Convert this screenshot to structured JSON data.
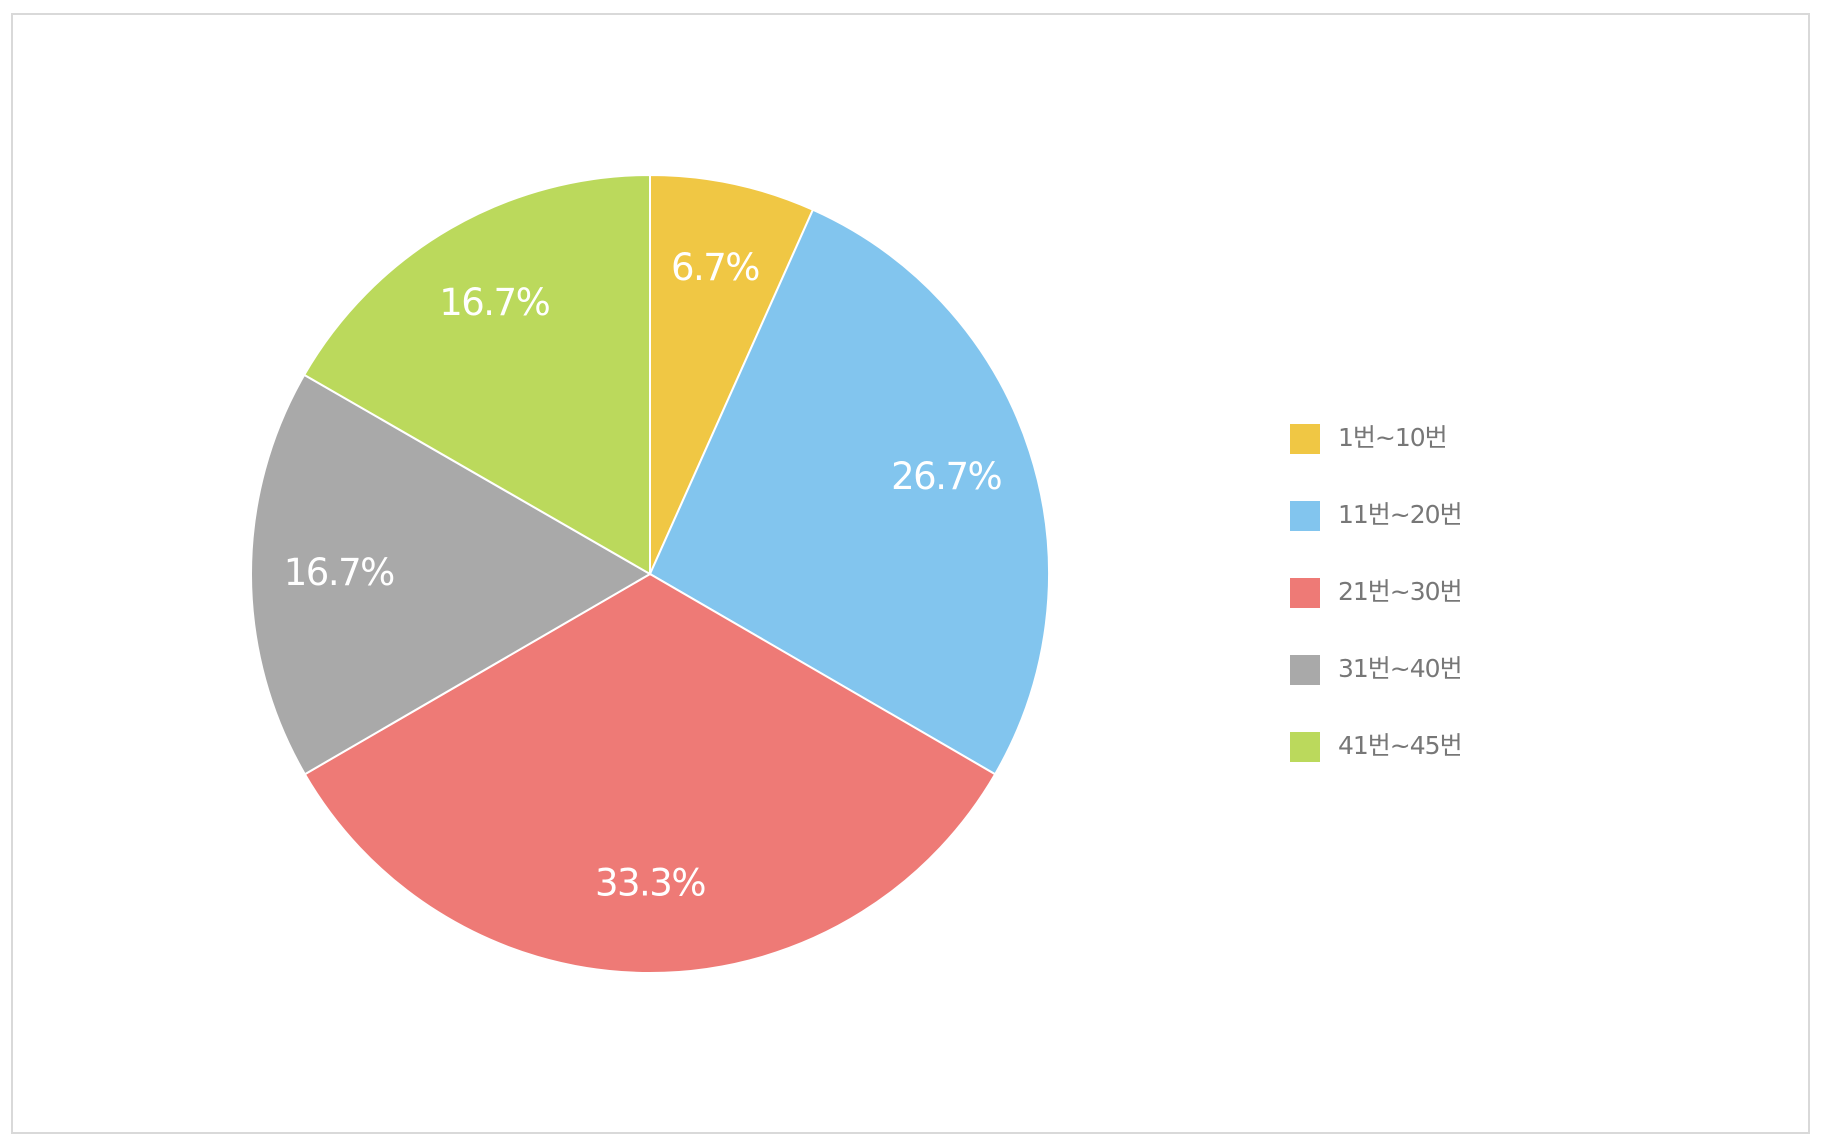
{
  "chart_data": {
    "type": "pie",
    "categories": [
      "1번~10번",
      "11번~20번",
      "21번~30번",
      "31번~40번",
      "41번~45번"
    ],
    "values": [
      6.7,
      26.7,
      33.3,
      16.7,
      16.7
    ],
    "value_labels": [
      "6.7%",
      "26.7%",
      "33.3%",
      "16.7%",
      "16.7%"
    ],
    "colors": [
      "#f0c744",
      "#82c5ee",
      "#ee7a76",
      "#a9a9a9",
      "#bbd95c"
    ],
    "legend": "right"
  }
}
